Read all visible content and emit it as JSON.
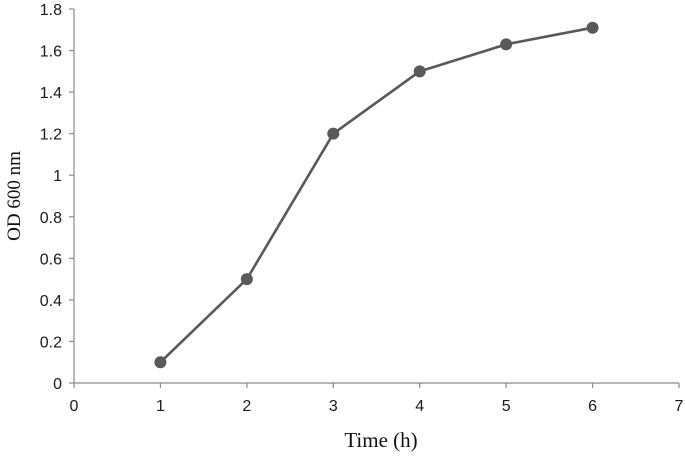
{
  "chart_data": {
    "type": "line",
    "title": "",
    "xlabel": "Time  (h)",
    "ylabel": "OD 600 nm",
    "xlim": [
      0,
      7
    ],
    "ylim": [
      0,
      1.8
    ],
    "x_ticks": [
      "0",
      "1",
      "2",
      "3",
      "4",
      "5",
      "6",
      "7"
    ],
    "y_ticks": [
      "0",
      "0.2",
      "0.4",
      "0.6",
      "0.8",
      "1",
      "1.2",
      "1.4",
      "1.6",
      "1.8"
    ],
    "grid": false,
    "legend": "none",
    "series": [
      {
        "color": "#595959",
        "x": [
          1,
          2,
          3,
          4,
          5,
          6
        ],
        "y": [
          0.1,
          0.5,
          1.2,
          1.5,
          1.63,
          1.71
        ]
      }
    ]
  }
}
